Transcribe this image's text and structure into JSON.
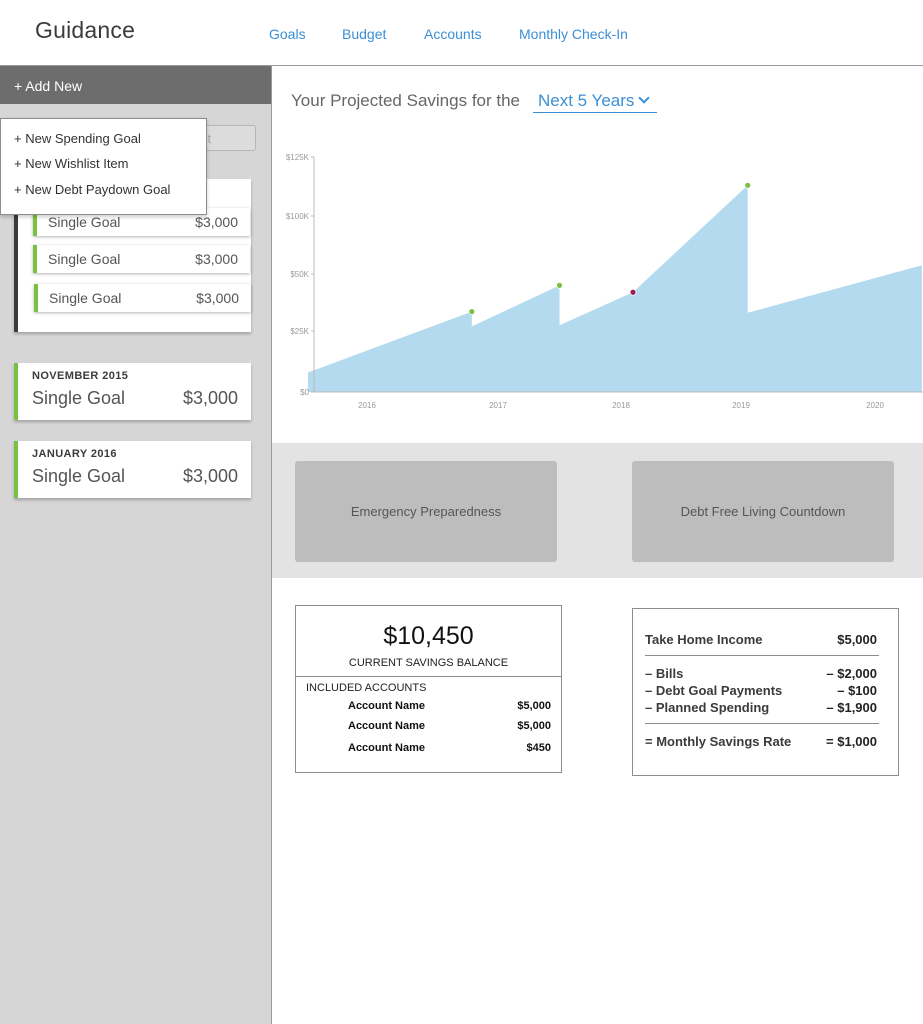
{
  "header": {
    "brand": "Guidance",
    "nav": [
      "Goals",
      "Budget",
      "Accounts",
      "Monthly Check-In"
    ]
  },
  "sidebar": {
    "add_new_label": "+ Add New",
    "search_ghost": "st",
    "dropdown": [
      "+ New Spending Goal",
      "+ New Wishlist Item",
      "+ New Debt Paydown Goal"
    ],
    "group_goals": [
      {
        "name": "Single Goal",
        "amount": "$3,000"
      },
      {
        "name": "Single Goal",
        "amount": "$3,000"
      },
      {
        "name": "Single Goal",
        "amount": "$3,000"
      }
    ],
    "cards": [
      {
        "date": "NOVEMBER 2015",
        "name": "Single Goal",
        "amount": "$3,000"
      },
      {
        "date": "JANUARY 2016",
        "name": "Single Goal",
        "amount": "$3,000"
      }
    ]
  },
  "projection": {
    "label": "Your Projected Savings for the",
    "period": "Next 5 Years"
  },
  "chart_data": {
    "type": "area",
    "title": "",
    "xlabel": "",
    "ylabel": "",
    "x_ticks": [
      "2016",
      "2017",
      "2018",
      "2019",
      "2020"
    ],
    "y_ticks": [
      "$0",
      "$25K",
      "$50K",
      "$100K",
      "$125K"
    ],
    "series": [
      {
        "values": [
          {
            "x": 2015.55,
            "y": 8000
          },
          {
            "x": 2016.8,
            "y": 33500
          },
          {
            "x": 2016.8,
            "y": 27000
          },
          {
            "x": 2017.5,
            "y": 45000
          },
          {
            "x": 2017.5,
            "y": 27500
          },
          {
            "x": 2018.1,
            "y": 42000
          },
          {
            "x": 2019.05,
            "y": 113000
          },
          {
            "x": 2019.05,
            "y": 33000
          },
          {
            "x": 2020.35,
            "y": 57500
          }
        ]
      }
    ],
    "markers": [
      {
        "x": 2016.8,
        "y": 33500,
        "color": "#7ac143"
      },
      {
        "x": 2017.5,
        "y": 45000,
        "color": "#7ac143"
      },
      {
        "x": 2018.1,
        "y": 42000,
        "color": "#9b1c5a"
      },
      {
        "x": 2019.05,
        "y": 113000,
        "color": "#7ac143"
      }
    ],
    "fill_color": "#b3daee"
  },
  "tiles": [
    "Emergency Preparedness",
    "Debt Free Living Countdown"
  ],
  "balance": {
    "amount": "$10,450",
    "label": "CURRENT SAVINGS BALANCE",
    "included_label": "INCLUDED ACCOUNTS",
    "accounts": [
      {
        "name": "Account Name",
        "value": "$5,000"
      },
      {
        "name": "Account Name",
        "value": "$5,000"
      },
      {
        "name": "Account Name",
        "value": "$450"
      }
    ]
  },
  "rate": {
    "income_label": "Take Home Income",
    "income_value": "$5,000",
    "deductions": [
      {
        "label": "– Bills",
        "value": "– $2,000"
      },
      {
        "label": "– Debt Goal Payments",
        "value": "– $100"
      },
      {
        "label": "– Planned Spending",
        "value": "– $1,900"
      }
    ],
    "total_label": "= Monthly Savings Rate",
    "total_value": "= $1,000"
  }
}
